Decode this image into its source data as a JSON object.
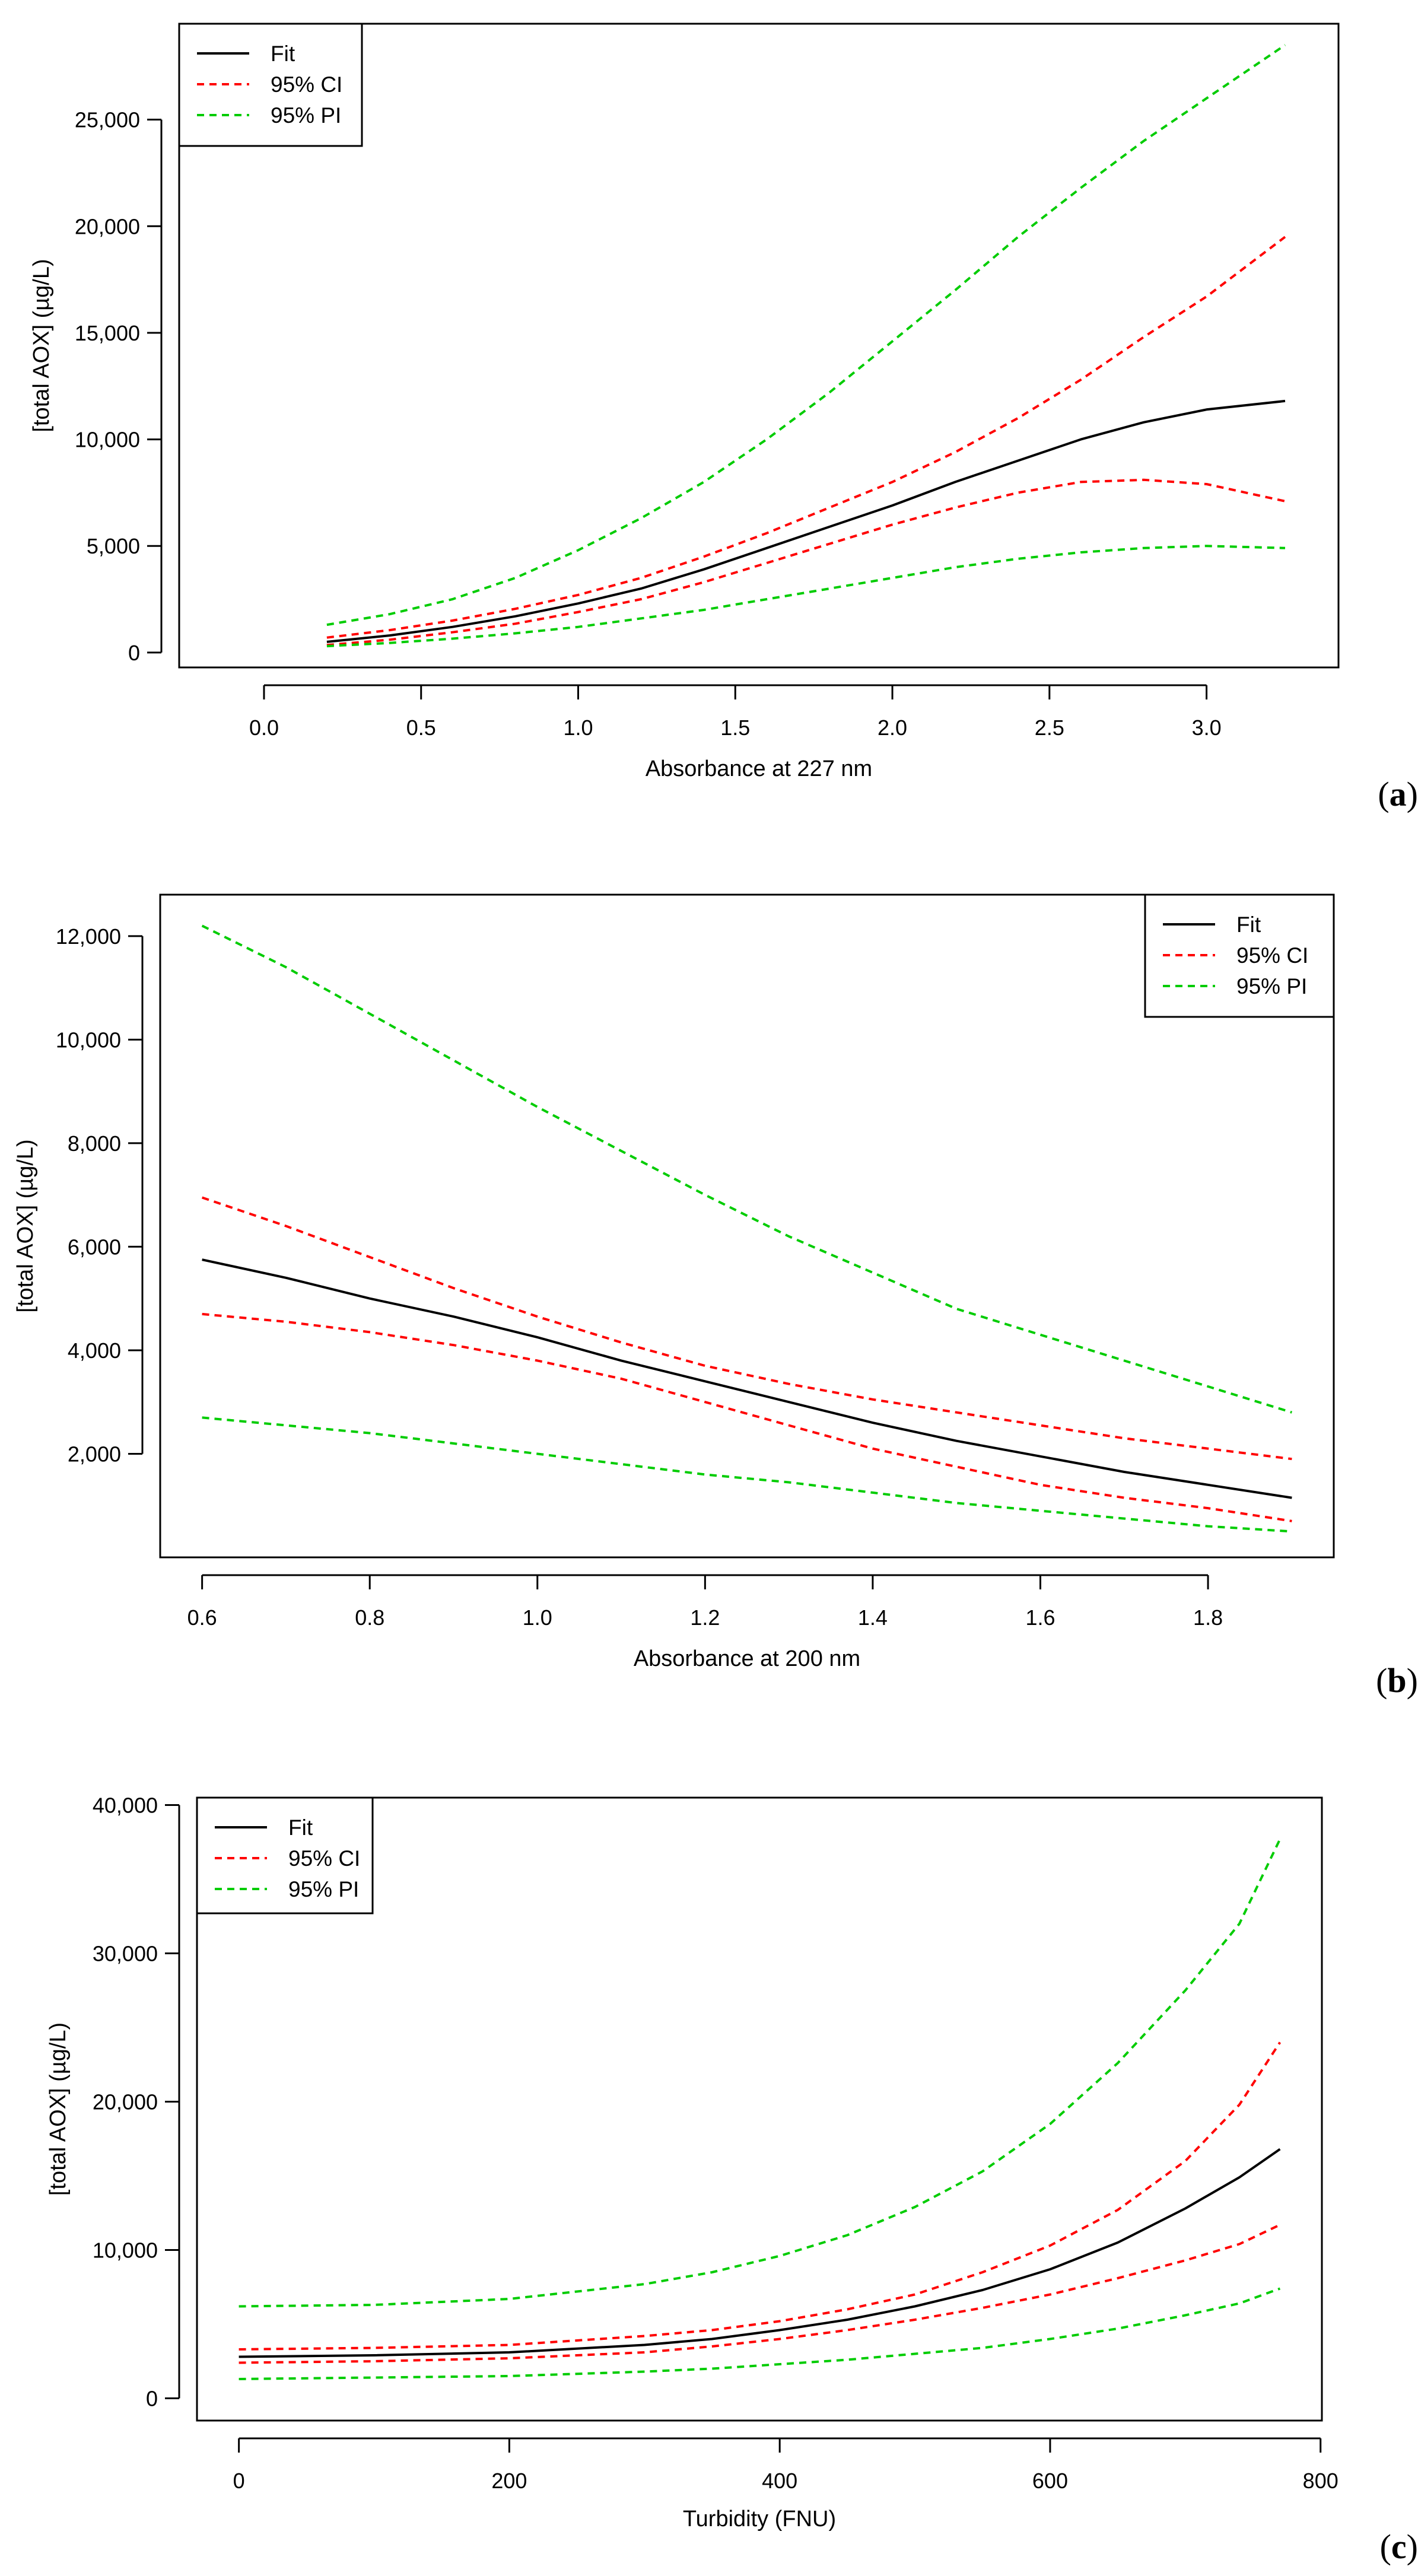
{
  "figure": {
    "panel_tags": [
      {
        "open": "(",
        "letter": "a",
        "close": ")"
      },
      {
        "open": "(",
        "letter": "b",
        "close": ")"
      },
      {
        "open": "(",
        "letter": "c",
        "close": ")"
      }
    ]
  },
  "colors": {
    "fit": "#000000",
    "ci": "#ff0000",
    "pi": "#00cc00"
  },
  "chart_data": [
    {
      "type": "line",
      "panel": "a",
      "title": "",
      "xlabel": "Absorbance at 227 nm",
      "ylabel": "[total AOX] (µg/L)",
      "xlim": [
        -0.27,
        3.42
      ],
      "ylim": [
        -700,
        29500
      ],
      "xticks": [
        0.0,
        0.5,
        1.0,
        1.5,
        2.0,
        2.5,
        3.0
      ],
      "xtick_labels": [
        "0.0",
        "0.5",
        "1.0",
        "1.5",
        "2.0",
        "2.5",
        "3.0"
      ],
      "yticks": [
        0,
        5000,
        10000,
        15000,
        20000,
        25000
      ],
      "ytick_labels": [
        "0",
        "5,000",
        "10,000",
        "15,000",
        "20,000",
        "25,000"
      ],
      "legend_position": "top-left",
      "x": [
        0.2,
        0.4,
        0.6,
        0.8,
        1.0,
        1.2,
        1.4,
        1.6,
        1.8,
        2.0,
        2.2,
        2.4,
        2.6,
        2.8,
        3.0,
        3.25
      ],
      "series": [
        {
          "name": "Fit",
          "style": "solid",
          "color": "#000000",
          "values": [
            500,
            800,
            1200,
            1700,
            2300,
            3000,
            3900,
            4900,
            5900,
            6900,
            8000,
            9000,
            10000,
            10800,
            11400,
            11800
          ]
        },
        {
          "name": "95% CI",
          "style": "dashed",
          "color": "#ff0000",
          "values": [
            700,
            1050,
            1500,
            2050,
            2700,
            3500,
            4500,
            5600,
            6800,
            8000,
            9400,
            11000,
            12800,
            14800,
            16700,
            19500
          ]
        },
        {
          "name": "95% CI",
          "style": "dashed",
          "color": "#ff0000",
          "values": [
            350,
            600,
            950,
            1350,
            1900,
            2500,
            3300,
            4200,
            5100,
            6000,
            6800,
            7500,
            8000,
            8100,
            7900,
            7100
          ]
        },
        {
          "name": "95% PI",
          "style": "dashed",
          "color": "#00cc00",
          "values": [
            1300,
            1800,
            2500,
            3500,
            4800,
            6300,
            8000,
            10000,
            12200,
            14600,
            17000,
            19500,
            21800,
            24000,
            26000,
            28500
          ]
        },
        {
          "name": "95% PI",
          "style": "dashed",
          "color": "#00cc00",
          "values": [
            300,
            450,
            650,
            900,
            1200,
            1600,
            2000,
            2500,
            3000,
            3500,
            4000,
            4400,
            4700,
            4900,
            5000,
            4900
          ]
        }
      ],
      "legend": [
        "Fit",
        "95% CI",
        "95% PI"
      ]
    },
    {
      "type": "line",
      "panel": "b",
      "title": "",
      "xlabel": "Absorbance at 200 nm",
      "ylabel": "[total AOX] (µg/L)",
      "xlim": [
        0.55,
        1.95
      ],
      "ylim": [
        0,
        12800
      ],
      "xticks": [
        0.6,
        0.8,
        1.0,
        1.2,
        1.4,
        1.6,
        1.8
      ],
      "xtick_labels": [
        "0.6",
        "0.8",
        "1.0",
        "1.2",
        "1.4",
        "1.6",
        "1.8"
      ],
      "yticks": [
        2000,
        4000,
        6000,
        8000,
        10000,
        12000
      ],
      "ytick_labels": [
        "2,000",
        "4,000",
        "6,000",
        "8,000",
        "10,000",
        "12,000"
      ],
      "legend_position": "top-right",
      "x": [
        0.6,
        0.7,
        0.8,
        0.9,
        1.0,
        1.1,
        1.2,
        1.3,
        1.4,
        1.5,
        1.6,
        1.7,
        1.8,
        1.9
      ],
      "series": [
        {
          "name": "Fit",
          "style": "solid",
          "color": "#000000",
          "values": [
            5750,
            5400,
            5000,
            4650,
            4250,
            3800,
            3400,
            3000,
            2600,
            2250,
            1950,
            1650,
            1400,
            1150
          ]
        },
        {
          "name": "95% CI",
          "style": "dashed",
          "color": "#ff0000",
          "values": [
            6950,
            6400,
            5800,
            5200,
            4650,
            4150,
            3700,
            3350,
            3050,
            2800,
            2550,
            2300,
            2100,
            1900
          ]
        },
        {
          "name": "95% CI",
          "style": "dashed",
          "color": "#ff0000",
          "values": [
            4700,
            4550,
            4350,
            4100,
            3800,
            3450,
            3000,
            2550,
            2100,
            1750,
            1400,
            1150,
            950,
            700
          ]
        },
        {
          "name": "95% PI",
          "style": "dashed",
          "color": "#00cc00",
          "values": [
            12200,
            11400,
            10500,
            9600,
            8700,
            7850,
            7000,
            6200,
            5500,
            4800,
            4300,
            3800,
            3300,
            2800
          ]
        },
        {
          "name": "95% PI",
          "style": "dashed",
          "color": "#00cc00",
          "values": [
            2700,
            2550,
            2400,
            2200,
            2000,
            1800,
            1600,
            1450,
            1250,
            1050,
            900,
            750,
            600,
            500
          ]
        }
      ],
      "legend": [
        "Fit",
        "95% CI",
        "95% PI"
      ]
    },
    {
      "type": "line",
      "panel": "c",
      "title": "",
      "xlabel": "Turbidity (FNU)",
      "ylabel": "[total AOX] (µg/L)",
      "xlim": [
        -31,
        801
      ],
      "ylim": [
        -1500,
        40500
      ],
      "xticks": [
        0,
        200,
        400,
        600,
        800
      ],
      "xtick_labels": [
        "0",
        "200",
        "400",
        "600",
        "800"
      ],
      "yticks": [
        0,
        10000,
        20000,
        30000,
        40000
      ],
      "ytick_labels": [
        "0",
        "10,000",
        "20,000",
        "30,000",
        "40,000"
      ],
      "legend_position": "top-left",
      "x": [
        0,
        100,
        200,
        300,
        350,
        400,
        450,
        500,
        550,
        600,
        650,
        700,
        740,
        770
      ],
      "series": [
        {
          "name": "Fit",
          "style": "solid",
          "color": "#000000",
          "values": [
            2800,
            2900,
            3100,
            3600,
            4000,
            4600,
            5300,
            6200,
            7300,
            8700,
            10500,
            12800,
            14900,
            16800
          ]
        },
        {
          "name": "95% CI",
          "style": "dashed",
          "color": "#ff0000",
          "values": [
            3300,
            3400,
            3600,
            4200,
            4600,
            5200,
            6000,
            7000,
            8500,
            10300,
            12700,
            16000,
            19800,
            24000
          ]
        },
        {
          "name": "95% CI",
          "style": "dashed",
          "color": "#ff0000",
          "values": [
            2400,
            2500,
            2700,
            3100,
            3500,
            4000,
            4600,
            5300,
            6100,
            7000,
            8100,
            9300,
            10400,
            11700
          ]
        },
        {
          "name": "95% PI",
          "style": "dashed",
          "color": "#00cc00",
          "values": [
            6200,
            6300,
            6700,
            7700,
            8500,
            9600,
            11000,
            12900,
            15300,
            18500,
            22600,
            27500,
            32000,
            37700
          ]
        },
        {
          "name": "95% PI",
          "style": "dashed",
          "color": "#00cc00",
          "values": [
            1300,
            1400,
            1500,
            1800,
            2000,
            2300,
            2600,
            3000,
            3400,
            4000,
            4700,
            5600,
            6400,
            7400
          ]
        }
      ],
      "legend": [
        "Fit",
        "95% CI",
        "95% PI"
      ]
    }
  ]
}
